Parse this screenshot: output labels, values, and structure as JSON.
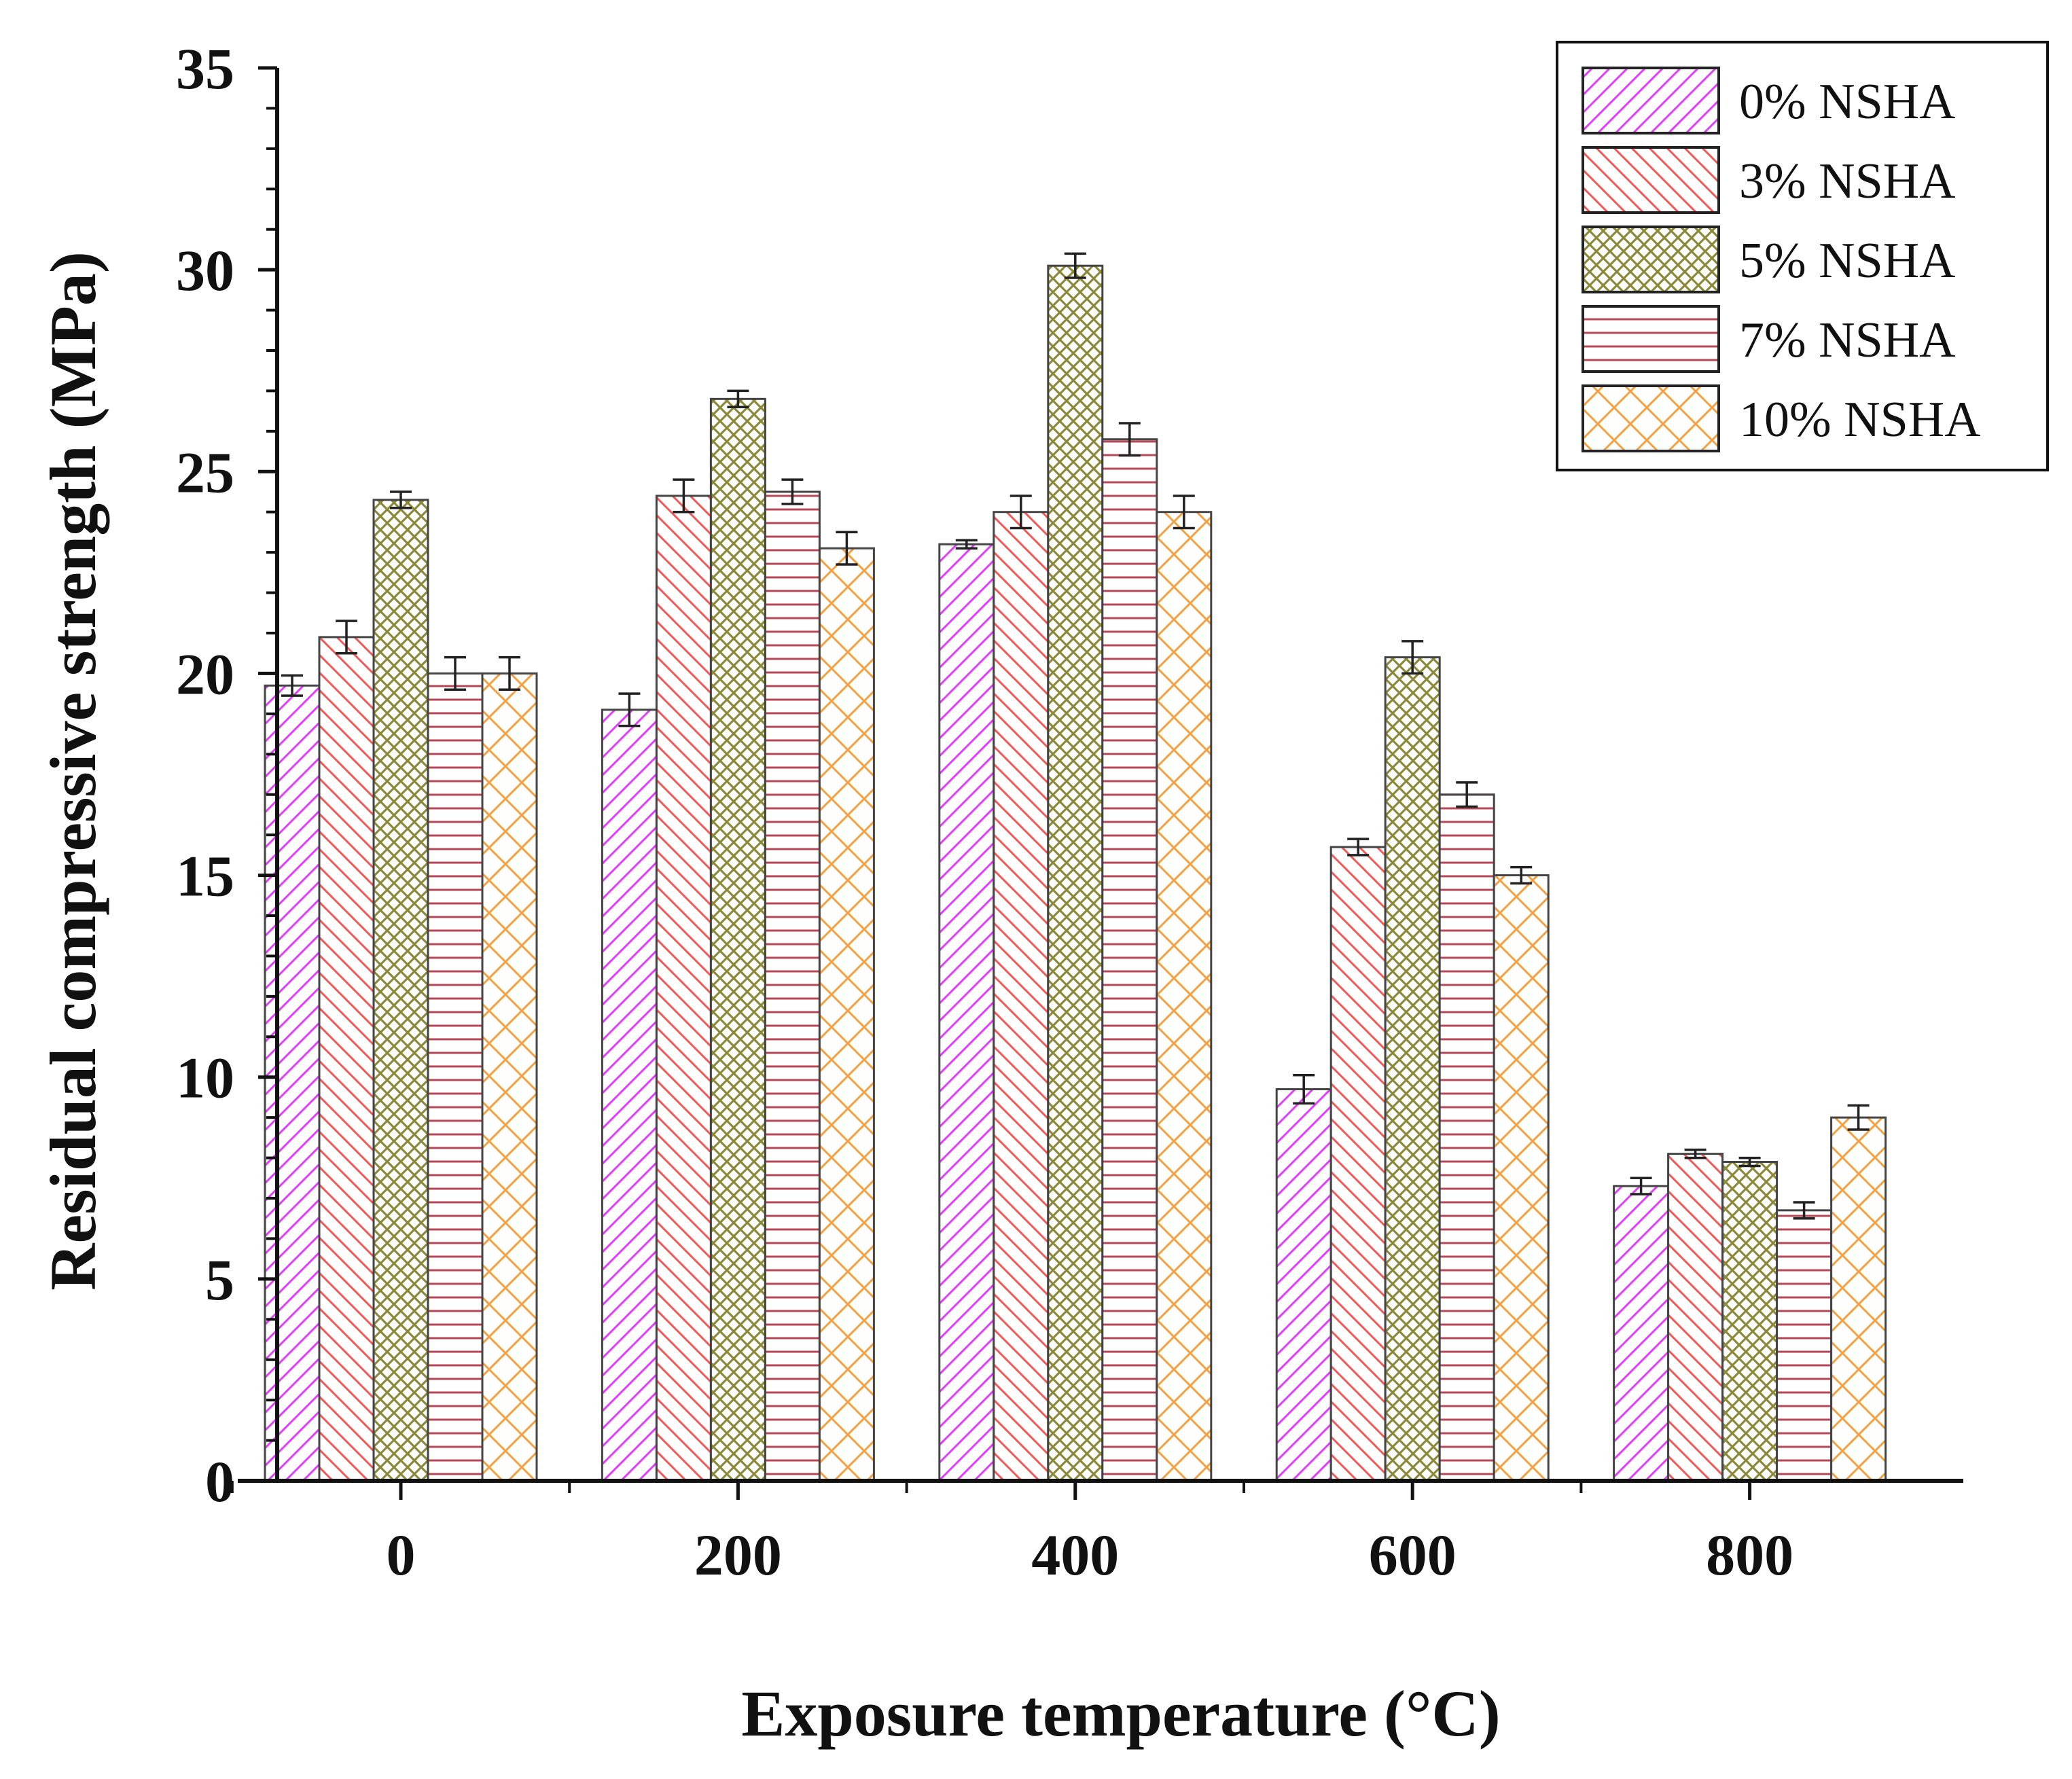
{
  "chart_data": {
    "type": "bar",
    "title": "",
    "xlabel": "Exposure temperature (°C)",
    "ylabel": "Residual compressive strength (MPa)",
    "categories": [
      "0",
      "200",
      "400",
      "600",
      "800"
    ],
    "ylim": [
      0,
      35
    ],
    "yticks": [
      "0",
      "5",
      "10",
      "15",
      "20",
      "25",
      "30",
      "35"
    ],
    "grid": false,
    "legend_position": "top-right",
    "series": [
      {
        "name": "0% NSHA",
        "color": "#e040fb",
        "pattern": "diag-right",
        "values": [
          19.7,
          19.1,
          23.2,
          9.7,
          7.3
        ],
        "errors": [
          0.25,
          0.4,
          0.1,
          0.35,
          0.2
        ]
      },
      {
        "name": "3% NSHA",
        "color": "#f25a5a",
        "pattern": "diag-left",
        "values": [
          20.9,
          24.4,
          24.0,
          15.7,
          8.1
        ],
        "errors": [
          0.4,
          0.4,
          0.4,
          0.2,
          0.1
        ]
      },
      {
        "name": "5% NSHA",
        "color": "#8a8a3a",
        "pattern": "crosshatch",
        "values": [
          24.3,
          26.8,
          30.1,
          20.4,
          7.9
        ],
        "errors": [
          0.2,
          0.2,
          0.3,
          0.4,
          0.1
        ]
      },
      {
        "name": "7% NSHA",
        "color": "#b5475a",
        "pattern": "horizontal",
        "values": [
          20.0,
          24.5,
          25.8,
          17.0,
          6.7
        ],
        "errors": [
          0.4,
          0.3,
          0.4,
          0.3,
          0.2
        ]
      },
      {
        "name": "10% NSHA",
        "color": "#f5a142",
        "pattern": "crosshatch-wide",
        "values": [
          20.0,
          23.1,
          24.0,
          15.0,
          9.0
        ],
        "errors": [
          0.4,
          0.4,
          0.4,
          0.2,
          0.3
        ]
      }
    ]
  }
}
